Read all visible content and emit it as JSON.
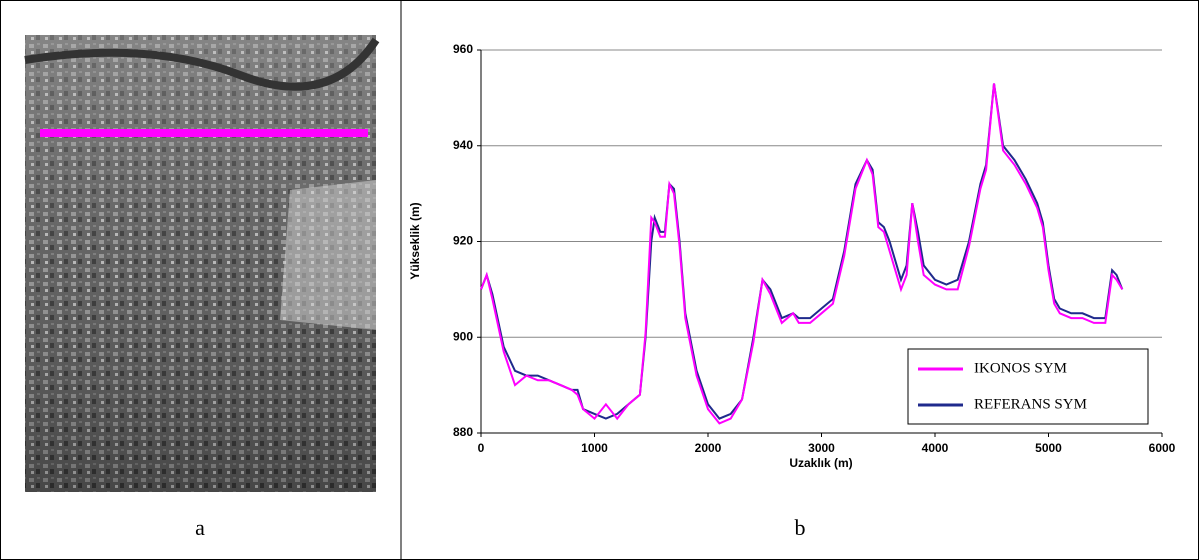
{
  "panels": [
    {
      "label": "a"
    },
    {
      "label": "b"
    }
  ],
  "chart_data": {
    "type": "line",
    "x_label": "Uzaklık (m)",
    "y_label": "Yükseklik (m)",
    "xlim": [
      0,
      6000
    ],
    "xticks": [
      0,
      1000,
      2000,
      3000,
      4000,
      5000,
      6000
    ],
    "ylim": [
      880,
      960
    ],
    "yticks": [
      880,
      900,
      920,
      940,
      960
    ],
    "grid": true,
    "legend": "lower-right",
    "x": [
      0,
      50,
      100,
      200,
      300,
      400,
      500,
      600,
      700,
      800,
      850,
      900,
      1000,
      1100,
      1200,
      1300,
      1400,
      1450,
      1500,
      1530,
      1580,
      1620,
      1660,
      1700,
      1750,
      1800,
      1900,
      2000,
      2100,
      2200,
      2300,
      2400,
      2480,
      2550,
      2650,
      2750,
      2800,
      2900,
      3000,
      3100,
      3200,
      3300,
      3400,
      3450,
      3500,
      3550,
      3600,
      3700,
      3750,
      3800,
      3850,
      3900,
      4000,
      4100,
      4200,
      4300,
      4400,
      4450,
      4520,
      4600,
      4700,
      4800,
      4900,
      4950,
      5000,
      5050,
      5100,
      5200,
      5300,
      5400,
      5500,
      5560,
      5600,
      5650
    ],
    "series": [
      {
        "name": "IKONOS SYM",
        "color": "#ff00ff",
        "values": [
          910,
          913,
          908,
          897,
          890,
          892,
          891,
          891,
          890,
          889,
          888,
          885,
          883,
          886,
          883,
          886,
          888,
          901,
          925,
          924,
          921,
          921,
          932,
          930,
          919,
          904,
          892,
          885,
          882,
          883,
          887,
          899,
          912,
          909,
          903,
          905,
          903,
          903,
          905,
          907,
          917,
          931,
          937,
          934,
          923,
          922,
          918,
          910,
          913,
          928,
          920,
          913,
          911,
          910,
          910,
          919,
          931,
          935,
          953,
          939,
          936,
          932,
          927,
          923,
          914,
          907,
          905,
          904,
          904,
          903,
          903,
          913,
          912,
          910
        ]
      },
      {
        "name": "REFERANS SYM",
        "color": "#1f2a8c",
        "values": [
          910,
          913,
          909,
          898,
          893,
          892,
          892,
          891,
          890,
          889,
          889,
          885,
          884,
          883,
          884,
          886,
          888,
          900,
          920,
          925,
          922,
          922,
          932,
          931,
          920,
          905,
          893,
          886,
          883,
          884,
          887,
          900,
          912,
          910,
          904,
          905,
          904,
          904,
          906,
          908,
          918,
          932,
          937,
          935,
          924,
          923,
          920,
          912,
          915,
          928,
          922,
          915,
          912,
          911,
          912,
          920,
          932,
          936,
          953,
          940,
          937,
          933,
          928,
          924,
          915,
          908,
          906,
          905,
          905,
          904,
          904,
          914,
          913,
          910
        ]
      }
    ]
  }
}
